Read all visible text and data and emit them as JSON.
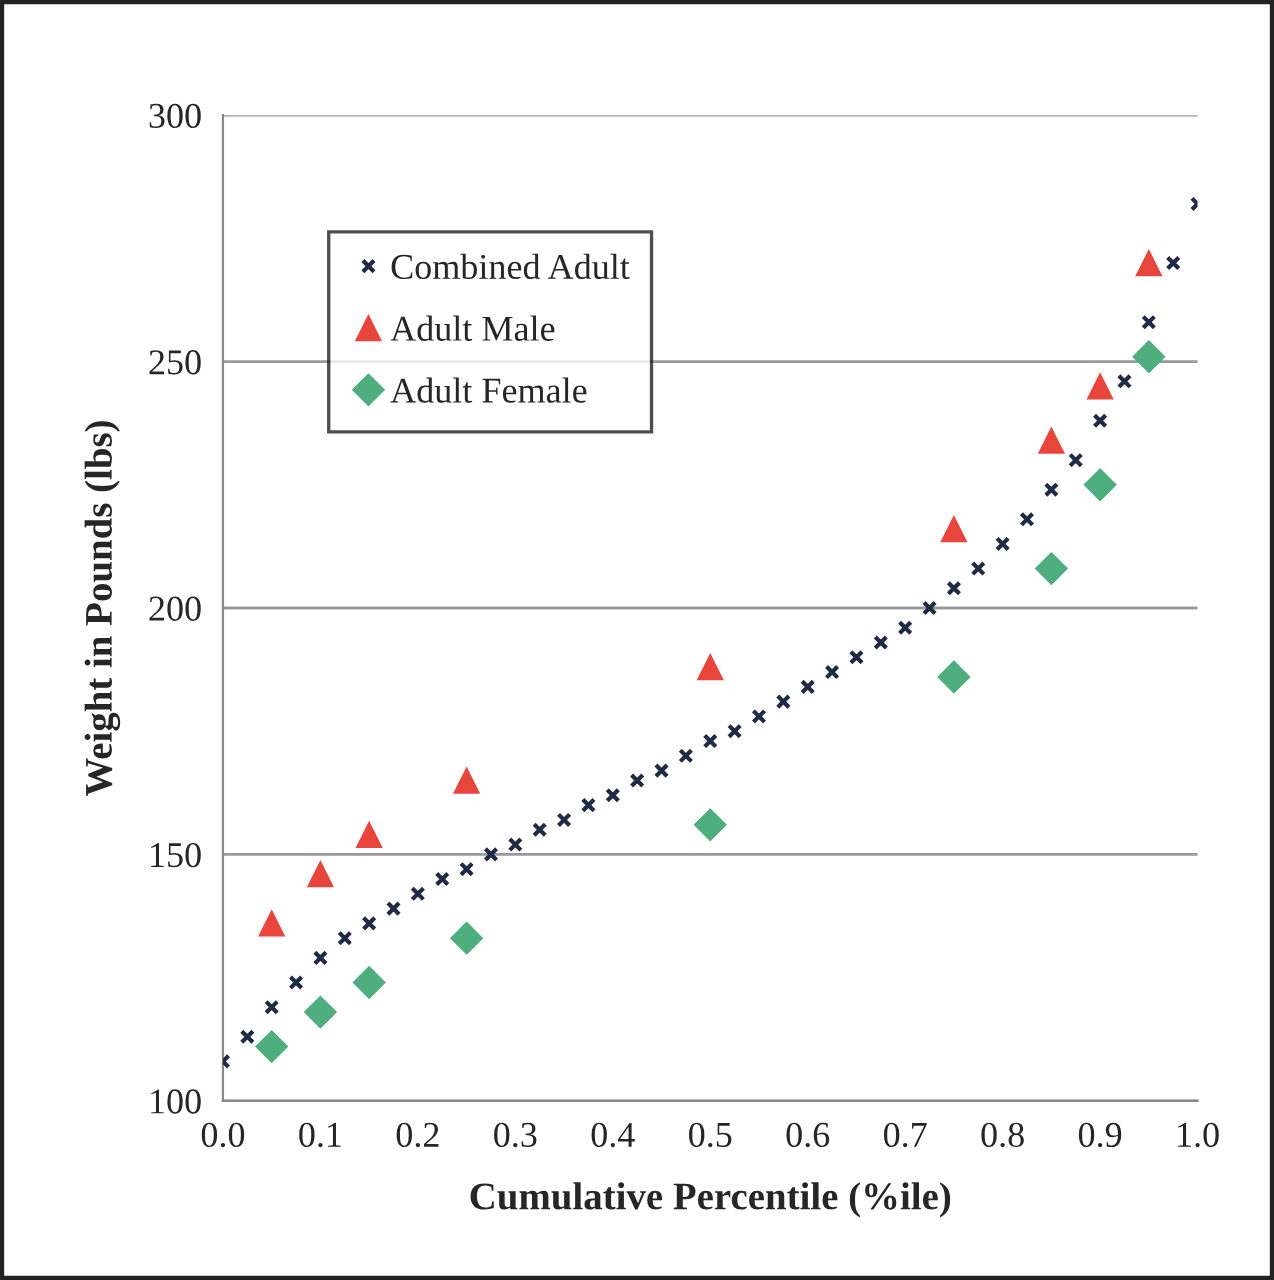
{
  "chart_data": {
    "type": "scatter",
    "xlabel": "Cumulative Percentile (%ile)",
    "ylabel": "Weight in Pounds (lbs)",
    "xlim": [
      0.0,
      1.0
    ],
    "xticks": [
      {
        "value": 0,
        "label": "0.0"
      },
      0.1,
      0.2,
      0.3,
      0.4,
      0.5,
      0.6,
      0.7,
      0.8,
      0.9,
      {
        "value": 1,
        "label": "1.0"
      }
    ],
    "ylim": [
      100,
      300
    ],
    "yticks": [
      100,
      150,
      200,
      250,
      300
    ],
    "grid": "y",
    "legend": "top left",
    "series": [
      {
        "name": "Combined Adult",
        "color": "#1f2a44",
        "marker": "cross",
        "x": [
          0,
          0.025,
          0.05,
          0.075,
          0.1,
          0.125,
          0.15,
          0.175,
          0.2,
          0.225,
          0.25,
          0.275,
          0.3,
          0.325,
          0.35,
          0.375,
          0.4,
          0.425,
          0.45,
          0.475,
          0.5,
          0.525,
          0.55,
          0.575,
          0.6,
          0.625,
          0.65,
          0.675,
          0.7,
          0.725,
          0.75,
          0.775,
          0.8,
          0.825,
          0.85,
          0.875,
          0.9,
          0.925,
          0.95,
          0.975,
          1.0
        ],
        "values": [
          108,
          113,
          119,
          124,
          129,
          133,
          136,
          139,
          142,
          145,
          147,
          150,
          152,
          155,
          157,
          160,
          162,
          165,
          167,
          170,
          173,
          175,
          178,
          181,
          184,
          187,
          190,
          193,
          196,
          200,
          204,
          208,
          213,
          218,
          224,
          230,
          238,
          246,
          258,
          270,
          282
        ]
      },
      {
        "name": "Adult Male",
        "color": "#e8453c",
        "marker": "triangle",
        "x": [
          0.05,
          0.1,
          0.15,
          0.25,
          0.5,
          0.75,
          0.85,
          0.9,
          0.95
        ],
        "values": [
          136,
          146,
          154,
          165,
          188,
          216,
          234,
          245,
          270
        ]
      },
      {
        "name": "Adult Female",
        "color": "#4fae7e",
        "marker": "diamond",
        "x": [
          0.05,
          0.1,
          0.15,
          0.25,
          0.5,
          0.75,
          0.85,
          0.9,
          0.95
        ],
        "values": [
          111,
          118,
          124,
          133,
          156,
          186,
          208,
          225,
          251
        ]
      }
    ]
  }
}
